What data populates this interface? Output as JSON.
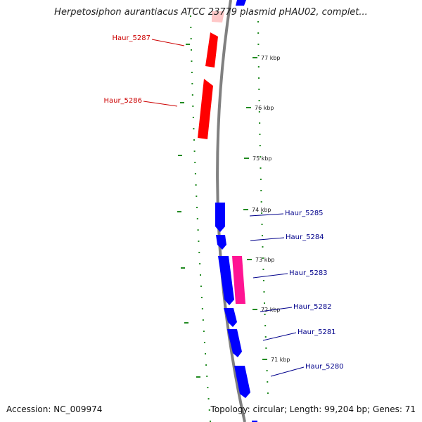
{
  "title": "Herpetosiphon aurantiacus ATCC 23779 plasmid pHAU02, complet...",
  "footer": {
    "accession": "Accession: NC_009974",
    "summary": "Topology: circular; Length: 99,204 bp; Genes: 71"
  },
  "colors": {
    "forward_gene": "#0000ff",
    "reverse_gene": "#ff0000",
    "rna_feature": "#ff1493",
    "backbone": "#808080",
    "tick": "#228b22",
    "forward_label": "#00008b",
    "reverse_label": "#cc0000"
  },
  "ruler": [
    {
      "kbp": 77,
      "label": "77 kbp"
    },
    {
      "kbp": 76,
      "label": "76 kbp"
    },
    {
      "kbp": 75,
      "label": "75 kbp"
    },
    {
      "kbp": 74,
      "label": "74 kbp"
    },
    {
      "kbp": 73,
      "label": "73 kbp"
    },
    {
      "kbp": 72,
      "label": "72 kbp"
    },
    {
      "kbp": 71,
      "label": "71 kbp"
    }
  ],
  "genes": [
    {
      "name": "Haur_5287",
      "strand": "reverse",
      "label": "Haur_5287"
    },
    {
      "name": "Haur_5286",
      "strand": "reverse",
      "label": "Haur_5286"
    },
    {
      "name": "Haur_5285",
      "strand": "forward",
      "label": "Haur_5285"
    },
    {
      "name": "Haur_5284",
      "strand": "forward",
      "label": "Haur_5284"
    },
    {
      "name": "Haur_5283",
      "strand": "forward",
      "label": "Haur_5283"
    },
    {
      "name": "Haur_5282",
      "strand": "forward",
      "label": "Haur_5282"
    },
    {
      "name": "Haur_5281",
      "strand": "forward",
      "label": "Haur_5281"
    },
    {
      "name": "Haur_5280",
      "strand": "forward",
      "label": "Haur_5280"
    }
  ]
}
